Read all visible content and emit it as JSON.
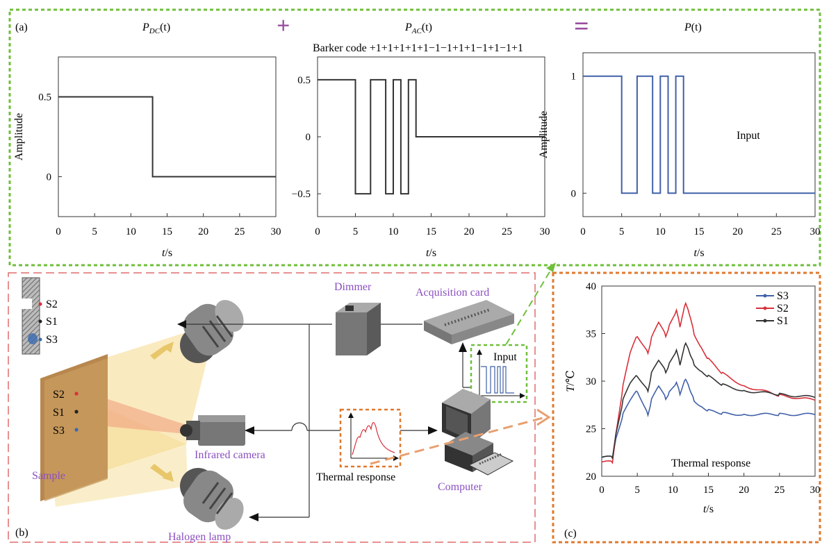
{
  "colors": {
    "green_frame": "#6fbf3a",
    "pink_frame": "#e06b6b",
    "orange_frame": "#e0792e",
    "purple_text": "#8a4fc0",
    "plus_equals": "#9a4fa0",
    "signal_blue": "#4060a8",
    "s3": "#4060a8",
    "s2": "#d8303a",
    "s1": "#333333",
    "lamp_light": "#f5d98a",
    "sample": "#c89b5e"
  },
  "panel_a": {
    "label": "(a)",
    "plus_symbol": "+",
    "equals_symbol": "=",
    "barker_caption": "Barker code +1+1+1+1+1−1−1+1+1−1+1−1+1",
    "plots": [
      {
        "id": "pdc",
        "title_main": "P",
        "title_sub": "DC",
        "title_arg": "(t)",
        "ylabel": "Amplitude",
        "xlabel_italic": "t",
        "xlabel_unit": "/s",
        "xlim": [
          0,
          30
        ],
        "ylim": [
          -0.25,
          0.75
        ],
        "yticks": [
          0,
          0.5
        ],
        "yticklabels": [
          "0",
          "0.5"
        ],
        "xticks": [
          "0",
          "5",
          "10",
          "15",
          "20",
          "25",
          "30"
        ]
      },
      {
        "id": "pac",
        "title_main": "P",
        "title_sub": "AC",
        "title_arg": "(t)",
        "ylabel": "",
        "xlabel_italic": "t",
        "xlabel_unit": "/s",
        "xlim": [
          0,
          30
        ],
        "ylim": [
          -0.7,
          0.7
        ],
        "yticks": [
          -0.5,
          0,
          0.5
        ],
        "yticklabels": [
          "−0.5",
          "0",
          "0.5"
        ],
        "xticks": [
          "0",
          "5",
          "10",
          "15",
          "20",
          "25",
          "30"
        ]
      },
      {
        "id": "p",
        "title_main": "P",
        "title_sub": "",
        "title_arg": "(t)",
        "ylabel": "Amplitude",
        "xlabel_italic": "t",
        "xlabel_unit": "/s",
        "annotation": "Input",
        "xlim": [
          0,
          30
        ],
        "ylim": [
          -0.2,
          1.2
        ],
        "yticks": [
          0,
          1
        ],
        "yticklabels": [
          "0",
          "1"
        ],
        "xticks": [
          "0",
          "5",
          "10",
          "15",
          "20",
          "25",
          "30"
        ]
      }
    ]
  },
  "panel_b": {
    "label": "(b)",
    "dimmer": "Dimmer",
    "acquisition_card": "Acquisition card",
    "infrared_camera": "Infrared camera",
    "thermal_response": "Thermal response",
    "computer": "Computer",
    "sample": "Sample",
    "halogen_lamp": "Halogen lamp",
    "input": "Input",
    "cross_section_points": [
      "S2",
      "S1",
      "S3"
    ],
    "sample_points": [
      "S2",
      "S1",
      "S3"
    ]
  },
  "panel_c": {
    "label": "(c)",
    "annotation": "Thermal response",
    "ylabel_italic": "T",
    "ylabel_unit": "/℃",
    "xlabel_italic": "t",
    "xlabel_unit": "/s",
    "xlim": [
      0,
      30
    ],
    "ylim": [
      20,
      40
    ],
    "yticks": [
      "20",
      "25",
      "30",
      "35",
      "40"
    ],
    "xticks": [
      "0",
      "5",
      "10",
      "15",
      "20",
      "25",
      "30"
    ],
    "legend": [
      "S3",
      "S2",
      "S1"
    ]
  },
  "chart_data": [
    {
      "type": "line",
      "panel": "(a)",
      "series": [
        {
          "x": [
            0,
            13,
            13,
            30
          ],
          "values": [
            0.5,
            0.5,
            0,
            0
          ]
        }
      ],
      "xlim": [
        0,
        30
      ],
      "ylim": [
        -0.25,
        0.75
      ]
    },
    {
      "type": "line",
      "panel": "(a)",
      "series": [
        {
          "x": [
            0,
            5,
            5,
            7,
            7,
            9,
            9,
            10,
            10,
            11,
            11,
            12,
            12,
            13,
            13,
            30
          ],
          "values": [
            0.5,
            0.5,
            -0.5,
            -0.5,
            0.5,
            0.5,
            -0.5,
            -0.5,
            0.5,
            0.5,
            -0.5,
            -0.5,
            0.5,
            0.5,
            0,
            0
          ]
        }
      ],
      "xlim": [
        0,
        30
      ],
      "ylim": [
        -0.7,
        0.7
      ]
    },
    {
      "type": "line",
      "panel": "(a)",
      "series": [
        {
          "x": [
            0,
            5,
            5,
            7,
            7,
            9,
            9,
            10,
            10,
            11,
            11,
            12,
            12,
            13,
            13,
            30
          ],
          "values": [
            1,
            1,
            0,
            0,
            1,
            1,
            0,
            0,
            1,
            1,
            0,
            0,
            1,
            1,
            0,
            0
          ]
        }
      ],
      "xlim": [
        0,
        30
      ],
      "ylim": [
        -0.2,
        1.2
      ]
    },
    {
      "type": "line",
      "panel": "(c)",
      "xlim": [
        0,
        30
      ],
      "ylim": [
        20,
        40
      ],
      "series": [
        {
          "name": "S3",
          "x": [
            0,
            1.5,
            2,
            3,
            4,
            5,
            6.5,
            7,
            8,
            9,
            9.5,
            10.5,
            11,
            11.8,
            12.5,
            13,
            14,
            15,
            17,
            20,
            25,
            30
          ],
          "values": [
            22,
            22,
            24,
            26.5,
            28,
            29,
            26.5,
            28,
            29.5,
            28.2,
            28.8,
            29.8,
            28.7,
            30.3,
            28.8,
            28,
            27.3,
            26.9,
            26.6,
            26.5,
            26.5,
            26.5
          ]
        },
        {
          "name": "S2",
          "x": [
            0,
            1.5,
            2,
            3,
            4,
            5,
            6.5,
            7,
            8,
            9,
            9.5,
            10.5,
            11,
            11.8,
            12.5,
            13,
            14,
            15,
            17,
            20,
            25,
            30
          ],
          "values": [
            21.5,
            21.5,
            24.5,
            29.5,
            33,
            34.8,
            33,
            34.5,
            36.2,
            34.8,
            35.8,
            37.4,
            35.8,
            38.3,
            36.5,
            35,
            33.5,
            32.3,
            30.8,
            29.5,
            28.5,
            28
          ]
        },
        {
          "name": "S1",
          "x": [
            0,
            1.5,
            2,
            3,
            4,
            5,
            6.5,
            7,
            8,
            9,
            9.5,
            10.5,
            11,
            11.8,
            12.5,
            13,
            14,
            15,
            17,
            20,
            25,
            30
          ],
          "values": [
            22,
            22,
            24.5,
            28,
            29.8,
            30.6,
            29,
            30.8,
            32.2,
            31,
            31.8,
            33.2,
            31.8,
            34.1,
            32.6,
            31.8,
            31,
            30.5,
            29.6,
            29,
            28.6,
            28.3
          ]
        }
      ]
    }
  ]
}
